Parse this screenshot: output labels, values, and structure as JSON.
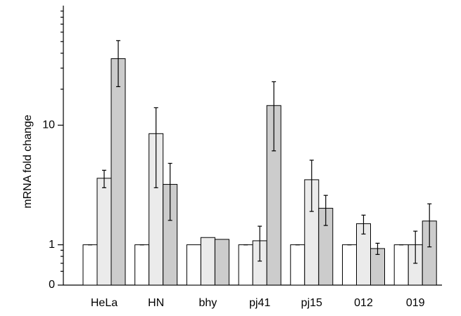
{
  "chart_data": {
    "type": "bar",
    "y_label": "mRNA fold change",
    "log_scale": true,
    "categories": [
      "HeLa",
      "HN",
      "bhy",
      "pj41",
      "pj15",
      "012",
      "019"
    ],
    "series": [
      {
        "color": "#ffffff",
        "values": [
          1,
          1,
          1,
          1,
          1,
          1,
          1
        ],
        "errors": [
          0,
          0,
          null,
          0,
          0,
          0,
          0
        ]
      },
      {
        "color": "#ebebeb",
        "values": [
          3.6,
          8.5,
          1.15,
          1.08,
          3.5,
          1.5,
          1.0
        ],
        "errors": [
          0.6,
          5.5,
          null,
          0.35,
          1.6,
          0.27,
          0.3
        ]
      },
      {
        "color": "#cccccc",
        "values": [
          36,
          3.2,
          1.11,
          14.6,
          2.02,
          0.93,
          1.58
        ],
        "errors": [
          15,
          1.6,
          null,
          8.5,
          0.57,
          0.1,
          0.62
        ]
      }
    ],
    "ylim": [
      0.46,
      100
    ],
    "yticks": [
      {
        "value": 0.46,
        "label": "0"
      },
      1,
      10
    ],
    "minor_yticks": [
      0.6,
      0.7,
      0.8,
      0.9,
      20,
      30,
      40,
      50,
      60,
      70,
      80,
      90
    ]
  }
}
